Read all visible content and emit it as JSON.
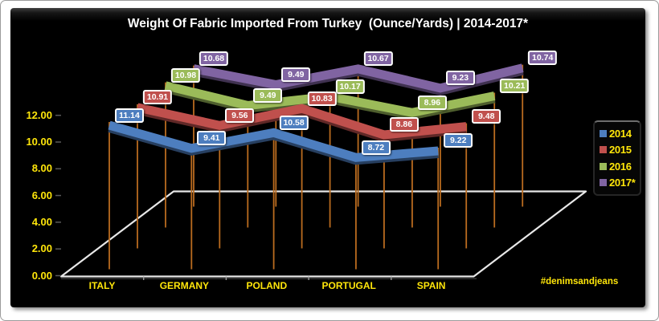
{
  "chart_data": {
    "type": "line",
    "style": "3d-ribbon",
    "title": "Weight Of Fabric Imported From Turkey  (Ounce/Yards) | 2014-2017*",
    "categories": [
      "ITALY",
      "GERMANY",
      "POLAND",
      "PORTUGAL",
      "SPAIN"
    ],
    "series": [
      {
        "name": "2014",
        "color": "#4d7ebf",
        "values": [
          11.14,
          9.41,
          10.58,
          8.72,
          9.22
        ]
      },
      {
        "name": "2015",
        "color": "#c0504d",
        "values": [
          10.91,
          9.56,
          10.83,
          8.86,
          9.48
        ]
      },
      {
        "name": "2016",
        "color": "#9bbb59",
        "values": [
          10.98,
          9.49,
          10.17,
          8.96,
          10.21
        ]
      },
      {
        "name": "2017*",
        "color": "#8064a2",
        "values": [
          10.68,
          9.49,
          10.67,
          9.23,
          10.74
        ]
      }
    ],
    "y_axis": {
      "min": 0,
      "max": 12,
      "step": 2,
      "tick_labels": [
        "0.00",
        "2.00",
        "4.00",
        "6.00",
        "8.00",
        "10.00",
        "12.00"
      ]
    },
    "data_labels": true,
    "drop_lines": true,
    "grid": false,
    "legend_position": "right",
    "watermark": "#denimsandjeans",
    "colors": {
      "background": "#000000",
      "title_text": "#ffffff",
      "axis_text": "#ffe60a",
      "drop_line": "#b96b1f",
      "floor_outline": "#e8e8e8",
      "label_border": "#ffffff"
    }
  }
}
